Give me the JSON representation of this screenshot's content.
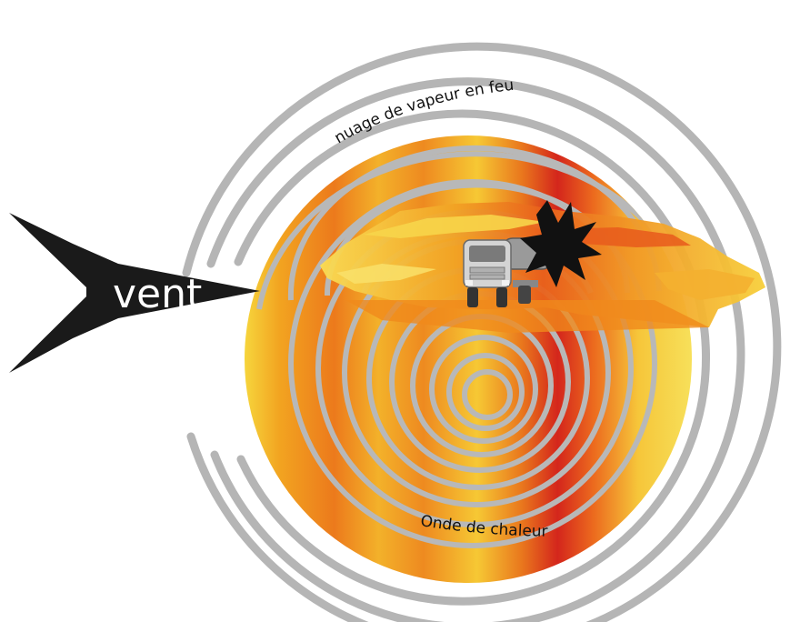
{
  "labels": {
    "wind": "vent",
    "cloud": "nuage de vapeur en feu",
    "heat_wave": "Onde de chaleur"
  },
  "icons": {
    "arrow": "wind-arrow-icon",
    "vehicle": "tanker-truck-icon",
    "explosion": "explosion-star-icon"
  },
  "colors": {
    "arrow": "#1a1a1a",
    "rings": "#b3b3b3",
    "fire_yellow": "#f7d33a",
    "fire_orange": "#f08a1c",
    "fire_red": "#d62a1e",
    "explosion": "#111111"
  }
}
